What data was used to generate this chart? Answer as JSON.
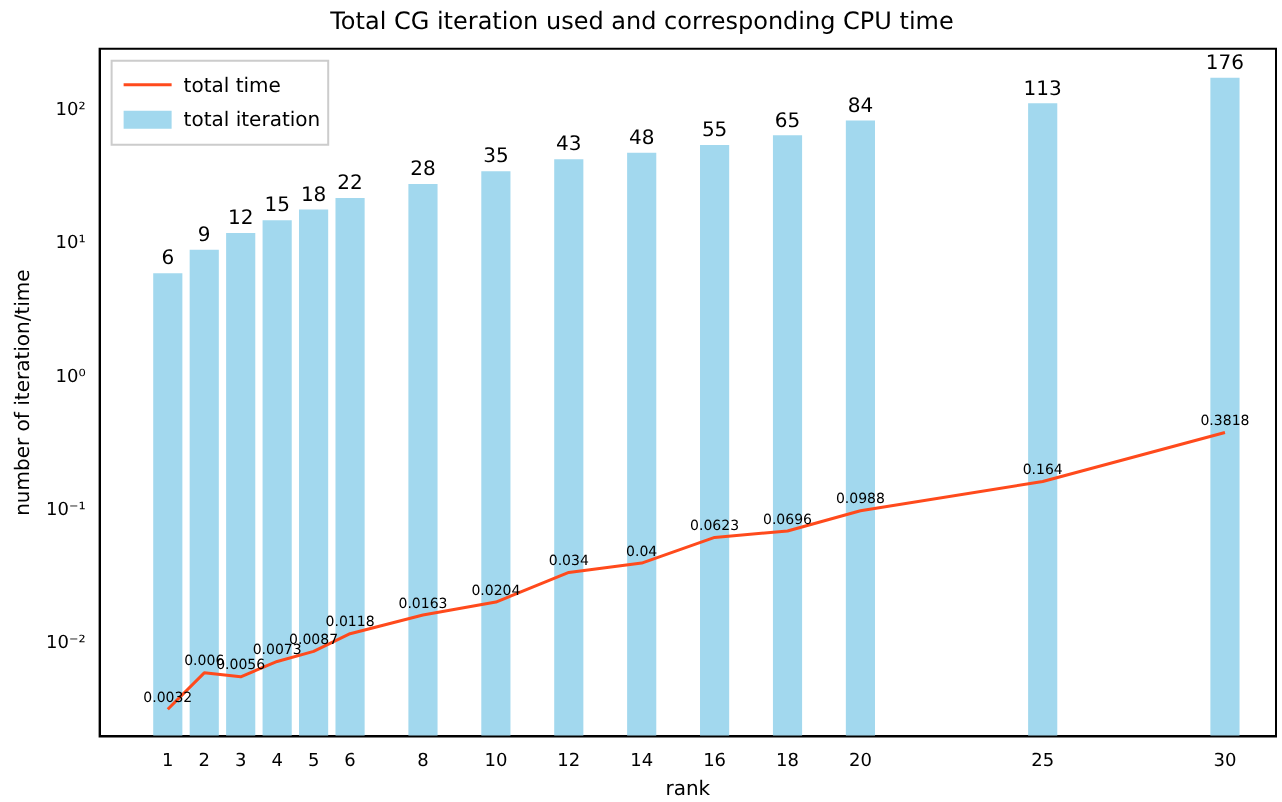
{
  "chart_data": {
    "type": "bar",
    "title": "Total CG iteration used and corresponding CPU time",
    "xlabel": "rank",
    "ylabel": "number of iteration/time",
    "x": [
      1,
      2,
      3,
      4,
      5,
      6,
      8,
      10,
      12,
      14,
      16,
      18,
      20,
      25,
      30
    ],
    "series": [
      {
        "name": "total time",
        "type": "line",
        "color": "#ff4a1c",
        "values": [
          0.0032,
          0.006,
          0.0056,
          0.0073,
          0.0087,
          0.0118,
          0.0163,
          0.0204,
          0.034,
          0.04,
          0.0623,
          0.0696,
          0.0988,
          0.164,
          0.3818
        ]
      },
      {
        "name": "total iteration",
        "color": "#a2d8ee",
        "values": [
          6,
          9,
          12,
          15,
          18,
          22,
          28,
          35,
          43,
          48,
          55,
          65,
          84,
          113,
          176
        ]
      }
    ],
    "xlim": [
      -0.87,
      31.4
    ],
    "xticks": [
      1,
      2,
      3,
      4,
      5,
      6,
      8,
      10,
      12,
      14,
      16,
      18,
      20,
      25,
      30
    ],
    "log": "y",
    "ylim": [
      0.002,
      290
    ],
    "yticks": [
      {
        "value": 0.01,
        "label": "10⁻²"
      },
      {
        "value": 0.1,
        "label": "10⁻¹"
      },
      {
        "value": 1,
        "label": "10⁰"
      },
      {
        "value": 10,
        "label": "10¹"
      },
      {
        "value": 100,
        "label": "10²"
      }
    ],
    "data_labels": true,
    "grid": false,
    "legend": "top left",
    "marker": "none"
  }
}
